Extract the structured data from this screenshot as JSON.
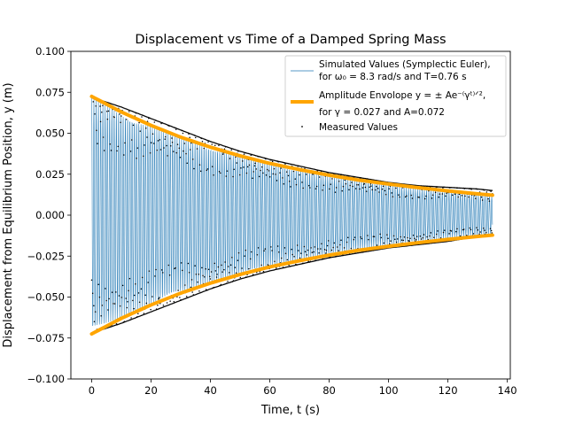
{
  "chart_data": {
    "type": "line",
    "title": "Displacement vs Time of a Damped Spring Mass",
    "xlabel": "Time, t (s)",
    "ylabel": "Displacement from Equilibrium Position, y (m)",
    "xlim": [
      -7,
      141
    ],
    "ylim": [
      -0.1,
      0.1
    ],
    "xticks": [
      0,
      20,
      40,
      60,
      80,
      100,
      120,
      140
    ],
    "xtick_labels": [
      "0",
      "20",
      "40",
      "60",
      "80",
      "100",
      "120",
      "140"
    ],
    "yticks": [
      -0.1,
      -0.075,
      -0.05,
      -0.025,
      0.0,
      0.025,
      0.05,
      0.075,
      0.1
    ],
    "ytick_labels": [
      "−0.100",
      "−0.075",
      "−0.050",
      "−0.025",
      "0.000",
      "0.025",
      "0.050",
      "0.075",
      "0.100"
    ],
    "grid": false,
    "legend_position": "top-right",
    "legend": [
      {
        "key": "simulated",
        "line1": "Simulated Values (Symplectic Euler),",
        "line2": "for ω₀ = 8.3 rad/s and T=0.76 s"
      },
      {
        "key": "envelope",
        "line1": "Amplitude Envolope y = ± Ae⁻⁽γᵗ⁾ᐟ²,",
        "line2": "for γ = 0.027 and A=0.072"
      },
      {
        "key": "measured",
        "line1": "Measured Values",
        "line2": ""
      }
    ],
    "series": [
      {
        "name": "Simulated Values (Symplectic Euler)",
        "kind": "oscillation",
        "color": "#1f77b4",
        "t_start": 0,
        "t_end": 135,
        "amplitude": 0.072,
        "gamma": 0.027,
        "omega0": 8.3,
        "period": 0.76
      },
      {
        "name": "Amplitude Envolope",
        "kind": "envelope",
        "color": "#ffa500",
        "x": [
          0,
          10,
          20,
          30,
          40,
          50,
          60,
          70,
          80,
          90,
          100,
          110,
          120,
          130,
          135
        ],
        "upper": [
          0.0725,
          0.063,
          0.0548,
          0.0476,
          0.0415,
          0.0362,
          0.0316,
          0.0278,
          0.0244,
          0.0214,
          0.019,
          0.0168,
          0.0148,
          0.013,
          0.0122
        ],
        "lower": [
          -0.0725,
          -0.063,
          -0.0548,
          -0.0476,
          -0.0415,
          -0.0362,
          -0.0316,
          -0.0278,
          -0.0244,
          -0.0214,
          -0.019,
          -0.0168,
          -0.0148,
          -0.013,
          -0.0122
        ]
      },
      {
        "name": "Measured Values",
        "kind": "points",
        "color": "#000000",
        "x": [
          0,
          10,
          20,
          30,
          40,
          50,
          60,
          70,
          80,
          90,
          100,
          110,
          120,
          130,
          135
        ],
        "upper": [
          0.072,
          0.066,
          0.059,
          0.052,
          0.045,
          0.039,
          0.034,
          0.03,
          0.026,
          0.023,
          0.02,
          0.018,
          0.017,
          0.016,
          0.015
        ],
        "lower": [
          -0.072,
          -0.066,
          -0.059,
          -0.052,
          -0.045,
          -0.039,
          -0.034,
          -0.03,
          -0.026,
          -0.023,
          -0.02,
          -0.018,
          -0.016,
          -0.013,
          -0.012
        ]
      }
    ]
  }
}
